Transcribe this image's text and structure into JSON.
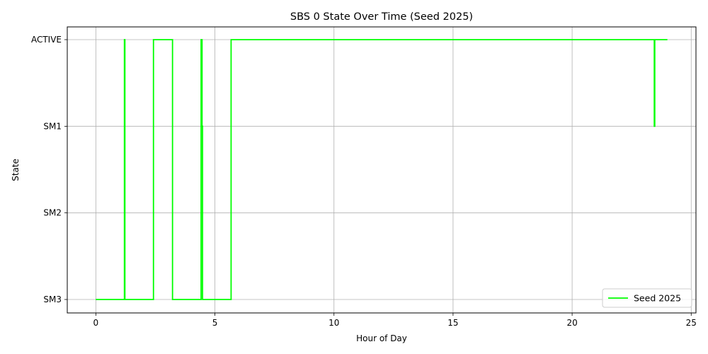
{
  "chart_data": {
    "type": "line",
    "title": "SBS 0 State Over Time (Seed 2025)",
    "xlabel": "Hour of Day",
    "ylabel": "State",
    "xlim": [
      -1.2,
      25.2
    ],
    "x_ticks": [
      0,
      5,
      10,
      15,
      20,
      25
    ],
    "y_categories": [
      "SM3",
      "SM2",
      "SM1",
      "ACTIVE"
    ],
    "grid": true,
    "legend_position": "lower-right",
    "series": [
      {
        "name": "Seed 2025",
        "color": "#00ff00",
        "step": true,
        "points": [
          {
            "x": 0.0,
            "y": "SM3"
          },
          {
            "x": 1.2,
            "y": "ACTIVE"
          },
          {
            "x": 1.22,
            "y": "SM3"
          },
          {
            "x": 2.42,
            "y": "ACTIVE"
          },
          {
            "x": 3.22,
            "y": "SM3"
          },
          {
            "x": 4.42,
            "y": "ACTIVE"
          },
          {
            "x": 4.46,
            "y": "SM1"
          },
          {
            "x": 4.48,
            "y": "SM3"
          },
          {
            "x": 5.68,
            "y": "ACTIVE"
          },
          {
            "x": 23.45,
            "y": "SM1"
          },
          {
            "x": 23.47,
            "y": "ACTIVE"
          },
          {
            "x": 24.0,
            "y": "ACTIVE"
          }
        ]
      }
    ]
  }
}
